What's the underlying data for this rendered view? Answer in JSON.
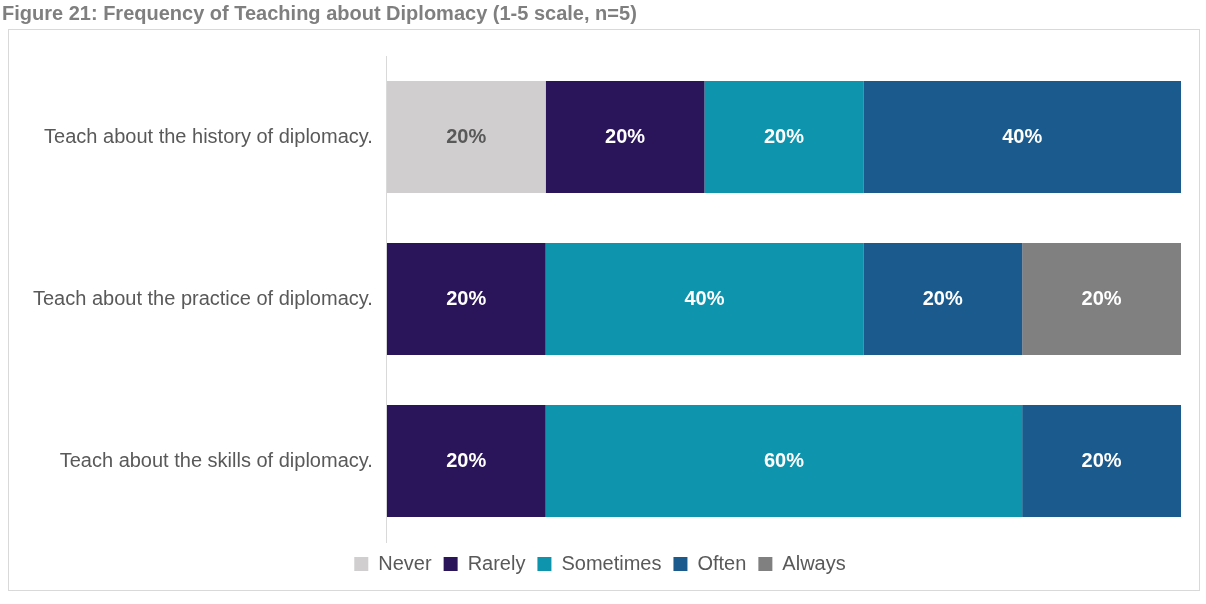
{
  "chart_data": {
    "type": "bar",
    "orientation": "horizontal",
    "stacked": true,
    "title": "Figure 21: Frequency of Teaching about Diplomacy (1-5 scale, n=5)",
    "categories": [
      "Teach about the history of diplomacy.",
      "Teach about the practice of diplomacy.",
      "Teach about the skills of diplomacy."
    ],
    "series": [
      {
        "name": "Never",
        "color": "#d0cece",
        "values": [
          20,
          null,
          null
        ],
        "value_labels": [
          "20%",
          null,
          null
        ]
      },
      {
        "name": "Rarely",
        "color": "#2a155a",
        "values": [
          20,
          20,
          20
        ],
        "value_labels": [
          "20%",
          "20%",
          "20%"
        ]
      },
      {
        "name": "Sometimes",
        "color": "#0e94ad",
        "values": [
          20,
          40,
          60
        ],
        "value_labels": [
          "20%",
          "40%",
          "60%"
        ]
      },
      {
        "name": "Often",
        "color": "#1b5a8c",
        "values": [
          40,
          20,
          20
        ],
        "value_labels": [
          "40%",
          "20%",
          "20%"
        ]
      },
      {
        "name": "Always",
        "color": "#808080",
        "values": [
          null,
          20,
          null
        ],
        "value_labels": [
          null,
          "20%",
          null
        ]
      }
    ],
    "xlim": [
      0,
      100
    ],
    "tick_labels": "y",
    "legend": "bottom"
  }
}
